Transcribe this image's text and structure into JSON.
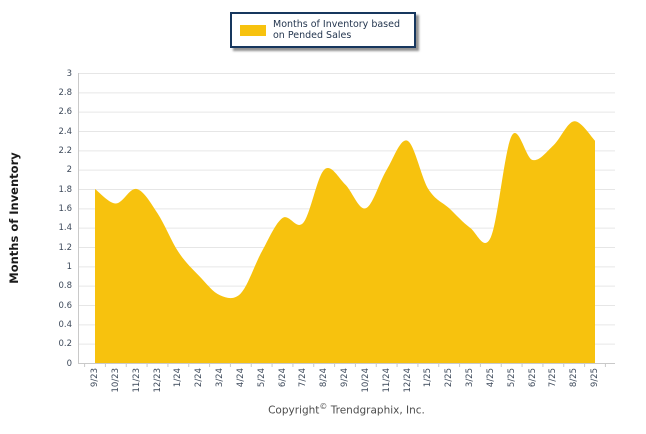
{
  "legend": {
    "label": "Months of Inventory based on Pended Sales"
  },
  "y_axis_title": "Months of Inventory",
  "footer": {
    "pre": "Copyright",
    "symbol": "©",
    "post": "Trendgraphix, Inc."
  },
  "colors": {
    "area": "#F7C20E",
    "legend_border": "#17375E",
    "legend_text": "#24364F",
    "grid": "#E6E6E6",
    "axis": "#C9C9C9",
    "tick_text": "#3E4A5B",
    "footer_text": "#4d4d4d"
  },
  "chart_data": {
    "type": "area",
    "title": "",
    "legend": "Months of Inventory based on Pended Sales",
    "legend_position": "top-center",
    "xlabel": "",
    "ylabel": "Months of Inventory",
    "ylim": [
      0,
      3
    ],
    "ytick_labels": [
      "3",
      "2.8",
      "2.6",
      "2.4",
      "2.2",
      "2",
      "1.8",
      "1.6",
      "1.4",
      "1.2",
      "1",
      "0.8",
      "0.6",
      "0.4",
      "0.2",
      "0"
    ],
    "grid": true,
    "smooth": true,
    "area_color": "#F7C20E",
    "x": [
      "9/23",
      "10/23",
      "11/23",
      "12/23",
      "1/24",
      "2/24",
      "3/24",
      "4/24",
      "5/24",
      "6/24",
      "7/24",
      "8/24",
      "9/24",
      "10/24",
      "11/24",
      "12/24",
      "1/25",
      "2/25",
      "3/25",
      "4/25",
      "5/25",
      "6/25",
      "7/25",
      "8/25",
      "9/25"
    ],
    "values": [
      1.8,
      1.65,
      1.8,
      1.55,
      1.15,
      0.9,
      0.7,
      0.72,
      1.15,
      1.5,
      1.45,
      2.0,
      1.85,
      1.6,
      2.0,
      2.3,
      1.8,
      1.6,
      1.4,
      1.3,
      2.35,
      2.1,
      2.25,
      2.5,
      2.3
    ]
  }
}
